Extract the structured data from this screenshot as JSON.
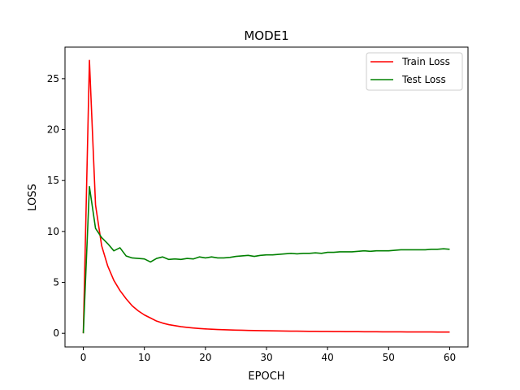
{
  "chart_data": {
    "type": "line",
    "title": "MODE1",
    "xlabel": "EPOCH",
    "ylabel": "LOSS",
    "xlim": [
      -3,
      63
    ],
    "ylim": [
      -1.34,
      28.1
    ],
    "xticks": [
      0,
      10,
      20,
      30,
      40,
      50,
      60
    ],
    "yticks": [
      0,
      5,
      10,
      15,
      20,
      25
    ],
    "grid": false,
    "legend_position": "top-right",
    "x": [
      0,
      1,
      2,
      3,
      4,
      5,
      6,
      7,
      8,
      9,
      10,
      11,
      12,
      13,
      14,
      15,
      16,
      17,
      18,
      19,
      20,
      21,
      22,
      23,
      24,
      25,
      26,
      27,
      28,
      29,
      30,
      31,
      32,
      33,
      34,
      35,
      36,
      37,
      38,
      39,
      40,
      41,
      42,
      43,
      44,
      45,
      46,
      47,
      48,
      49,
      50,
      51,
      52,
      53,
      54,
      55,
      56,
      57,
      58,
      59,
      60
    ],
    "series": [
      {
        "name": "Train Loss",
        "color": "#ff0000",
        "values": [
          0.0,
          26.8,
          12.6,
          8.6,
          6.6,
          5.2,
          4.2,
          3.4,
          2.7,
          2.2,
          1.8,
          1.5,
          1.2,
          1.0,
          0.85,
          0.75,
          0.65,
          0.58,
          0.52,
          0.47,
          0.43,
          0.4,
          0.37,
          0.35,
          0.33,
          0.31,
          0.3,
          0.28,
          0.27,
          0.26,
          0.25,
          0.24,
          0.23,
          0.22,
          0.21,
          0.21,
          0.2,
          0.19,
          0.19,
          0.18,
          0.18,
          0.17,
          0.17,
          0.16,
          0.16,
          0.16,
          0.15,
          0.15,
          0.15,
          0.14,
          0.14,
          0.14,
          0.14,
          0.13,
          0.13,
          0.13,
          0.13,
          0.13,
          0.12,
          0.12,
          0.12
        ]
      },
      {
        "name": "Test Loss",
        "color": "#008000",
        "values": [
          0.0,
          14.4,
          10.3,
          9.4,
          8.8,
          8.1,
          8.4,
          7.6,
          7.4,
          7.35,
          7.3,
          7.0,
          7.35,
          7.5,
          7.25,
          7.3,
          7.25,
          7.35,
          7.3,
          7.5,
          7.4,
          7.5,
          7.4,
          7.4,
          7.45,
          7.55,
          7.6,
          7.65,
          7.55,
          7.65,
          7.7,
          7.7,
          7.75,
          7.8,
          7.85,
          7.8,
          7.85,
          7.85,
          7.9,
          7.85,
          7.95,
          7.95,
          8.0,
          8.0,
          8.0,
          8.05,
          8.1,
          8.05,
          8.1,
          8.1,
          8.1,
          8.15,
          8.2,
          8.2,
          8.2,
          8.2,
          8.2,
          8.25,
          8.25,
          8.3,
          8.25
        ]
      }
    ]
  }
}
